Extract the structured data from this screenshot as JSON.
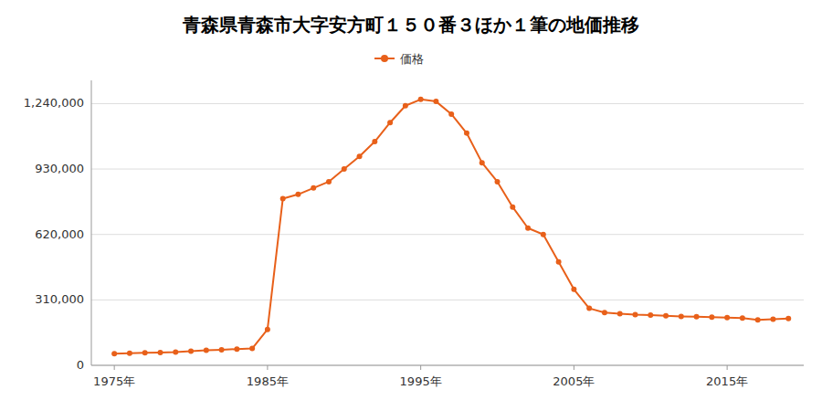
{
  "chart_data": {
    "type": "line",
    "title": "青森県青森市大字安方町１５０番３ほか１筆の地価推移",
    "x": [
      1975,
      1976,
      1977,
      1978,
      1979,
      1980,
      1981,
      1982,
      1983,
      1984,
      1985,
      1986,
      1987,
      1988,
      1989,
      1990,
      1991,
      1992,
      1993,
      1994,
      1995,
      1996,
      1997,
      1998,
      1999,
      2000,
      2001,
      2002,
      2003,
      2004,
      2005,
      2006,
      2007,
      2008,
      2009,
      2010,
      2011,
      2012,
      2013,
      2014,
      2015,
      2016,
      2017,
      2018,
      2019
    ],
    "series": [
      {
        "name": "価格",
        "color": "#e8601a",
        "marker": "circle",
        "values": [
          55000,
          57000,
          59000,
          61000,
          63000,
          67000,
          71000,
          74000,
          77000,
          80000,
          170000,
          790000,
          810000,
          840000,
          870000,
          930000,
          990000,
          1060000,
          1150000,
          1230000,
          1260000,
          1250000,
          1190000,
          1100000,
          960000,
          870000,
          750000,
          650000,
          620000,
          490000,
          360000,
          270000,
          250000,
          245000,
          240000,
          238000,
          235000,
          232000,
          230000,
          228000,
          226000,
          224000,
          215000,
          218000,
          222000
        ]
      }
    ],
    "xlim": [
      1973.5,
      2020
    ],
    "xticks": [
      {
        "value": 1975,
        "label": "1975年"
      },
      {
        "value": 1985,
        "label": "1985年"
      },
      {
        "value": 1995,
        "label": "1995年"
      },
      {
        "value": 2005,
        "label": "2005年"
      },
      {
        "value": 2015,
        "label": "2015年"
      }
    ],
    "ylim": [
      0,
      1350000
    ],
    "yticks": [
      0,
      {
        "value": 310000,
        "label": "310,000"
      },
      {
        "value": 620000,
        "label": "620,000"
      },
      {
        "value": 930000,
        "label": "930,000"
      },
      {
        "value": 1240000,
        "label": "1,240,000"
      }
    ],
    "grid": true,
    "legend": "top"
  }
}
